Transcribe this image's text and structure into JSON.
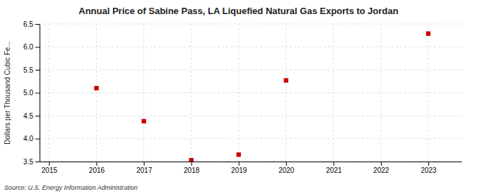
{
  "chart_data": {
    "type": "scatter",
    "title": "Annual Price of Sabine Pass, LA Liquefied Natural Gas Exports to Jordan",
    "ylabel": "Dollars per Thousand Cubic Fe...",
    "annotations": [
      "Source: U.S. Energy Information Administration"
    ],
    "x": [
      2016,
      2017,
      2018,
      2019,
      2020,
      2023
    ],
    "values": [
      5.1,
      4.38,
      3.53,
      3.65,
      5.27,
      6.29
    ],
    "color": "#cc0000",
    "marker": "square",
    "xlim": [
      2014.8,
      2023.7
    ],
    "xticks": [
      2015,
      2016,
      2017,
      2018,
      2019,
      2020,
      2021,
      2022,
      2023
    ],
    "ylim": [
      3.5,
      6.5
    ],
    "yticks": [
      3.5,
      {
        "value": 4.0,
        "label": "4.0"
      },
      4.5,
      {
        "value": 5.0,
        "label": "5.0"
      },
      5.5,
      {
        "value": 6.0,
        "label": "6.0"
      },
      6.5
    ],
    "grid": true
  }
}
